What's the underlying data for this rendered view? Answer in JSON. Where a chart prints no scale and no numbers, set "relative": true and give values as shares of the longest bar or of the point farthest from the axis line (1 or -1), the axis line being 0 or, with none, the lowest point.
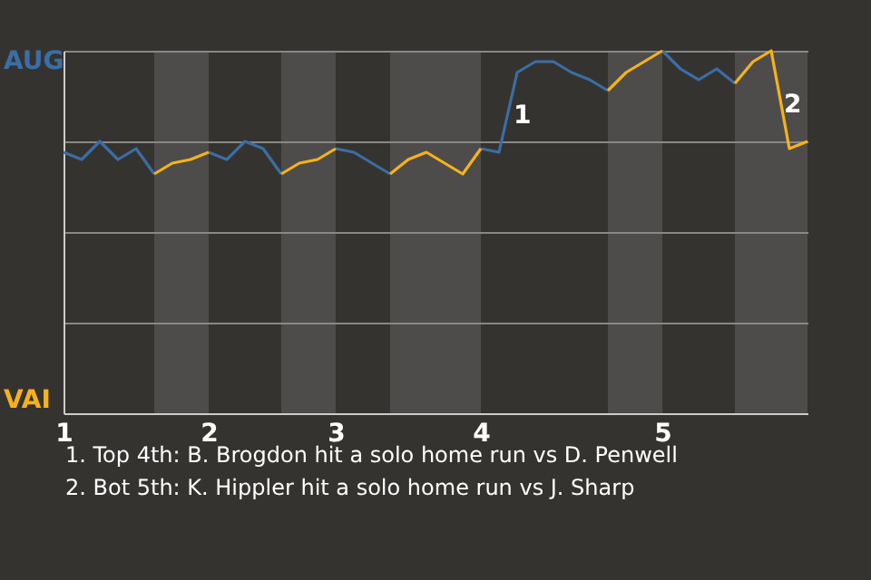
{
  "chart_data": {
    "type": "line",
    "categories": [
      "1",
      null,
      null,
      null,
      null,
      null,
      null,
      null,
      "2",
      null,
      null,
      null,
      null,
      null,
      null,
      "3",
      null,
      null,
      null,
      null,
      null,
      null,
      null,
      "4",
      null,
      null,
      null,
      null,
      null,
      null,
      null,
      null,
      null,
      "5",
      null,
      null,
      null,
      null,
      null,
      null,
      null,
      null
    ],
    "relative": true,
    "series": [
      {
        "name": "AUG",
        "color": "#3a6ea5",
        "values": [
          0.72,
          0.7,
          0.75,
          0.7,
          0.73,
          0.66,
          null,
          null,
          0.72,
          0.7,
          0.75,
          0.73,
          0.66,
          null,
          null,
          0.73,
          0.72,
          0.69,
          0.66,
          null,
          null,
          null,
          null,
          0.73,
          0.72,
          0.94,
          0.97,
          0.97,
          0.94,
          0.92,
          0.89,
          null,
          null,
          1,
          0.95,
          0.92,
          0.95,
          0.91,
          null,
          null,
          null,
          null
        ]
      },
      {
        "name": "VAI",
        "color": "#f5b21b",
        "values": [
          null,
          null,
          null,
          null,
          null,
          0.66,
          0.69,
          0.7,
          0.72,
          null,
          null,
          null,
          0.66,
          0.69,
          0.7,
          0.73,
          null,
          null,
          0.66,
          0.7,
          0.72,
          0.69,
          0.66,
          0.73,
          null,
          null,
          null,
          null,
          null,
          null,
          0.89,
          0.94,
          0.97,
          1,
          null,
          null,
          null,
          0.91,
          0.97,
          1,
          0.73,
          0.75
        ]
      }
    ],
    "grid": "y",
    "annotations": [
      "1",
      "2",
      "1. Top 4th: B. Brogdon hit a solo home run vs D. Penwell",
      "2. Bot 5th: K. Hippler hit a solo home run vs J. Sharp"
    ]
  }
}
